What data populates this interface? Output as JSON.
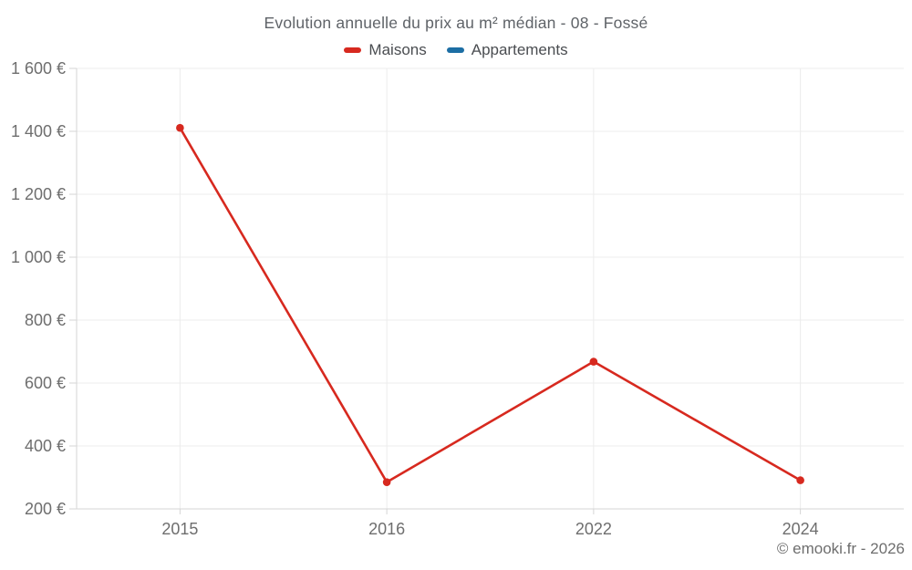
{
  "title": "Evolution annuelle du prix au m² médian - 08 - Fossé",
  "legend": [
    {
      "label": "Maisons",
      "color": "#d7291f"
    },
    {
      "label": "Appartements",
      "color": "#1c6ea4"
    }
  ],
  "footer": "© emooki.fr - 2026",
  "colors": {
    "grid": "#ececec",
    "axis": "#d5d5d5",
    "tick_text": "#6e6e6e",
    "background": "#ffffff"
  },
  "chart_data": {
    "type": "line",
    "title": "Evolution annuelle du prix au m² médian - 08 - Fossé",
    "categories": [
      "2015",
      "2016",
      "2022",
      "2024"
    ],
    "series": [
      {
        "name": "Maisons",
        "color": "#d7291f",
        "values": [
          1411,
          285,
          668,
          291
        ]
      },
      {
        "name": "Appartements",
        "color": "#1c6ea4",
        "values": []
      }
    ],
    "xlabel": "",
    "ylabel": "",
    "ylim": [
      200,
      1600
    ],
    "yticks": [
      200,
      400,
      600,
      800,
      1000,
      1200,
      1400,
      1600
    ],
    "ytick_labels": [
      "200 €",
      "400 €",
      "600 €",
      "800 €",
      "1 000 €",
      "1 200 €",
      "1 400 €",
      "1 600 €"
    ],
    "grid": true,
    "legend_position": "top",
    "currency": "€"
  }
}
